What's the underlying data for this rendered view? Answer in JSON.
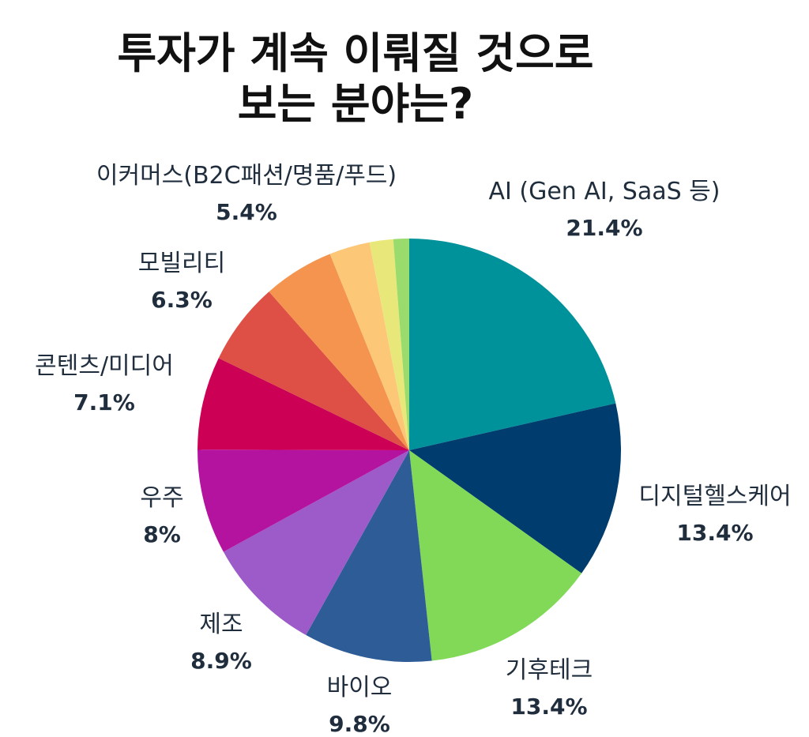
{
  "title": {
    "line1": "투자가 계속 이뤄질 것으로",
    "line2": "보는 분야는?"
  },
  "chart_data": {
    "type": "pie",
    "start": "12 o'clock, clockwise",
    "slices": [
      {
        "label": "AI (Gen AI, SaaS 등)",
        "value": 21.4,
        "pct_label": "21.4%",
        "color": "#00929A"
      },
      {
        "label": "디지털헬스케어",
        "value": 13.4,
        "pct_label": "13.4%",
        "color": "#003D6E"
      },
      {
        "label": "기후테크",
        "value": 13.4,
        "pct_label": "13.4%",
        "color": "#82D857"
      },
      {
        "label": "바이오",
        "value": 9.8,
        "pct_label": "9.8%",
        "color": "#2E5C97"
      },
      {
        "label": "제조",
        "value": 8.9,
        "pct_label": "8.9%",
        "color": "#9C5BC9"
      },
      {
        "label": "우주",
        "value": 8,
        "pct_label": "8%",
        "color": "#B4139F"
      },
      {
        "label": "콘텐츠/미디어",
        "value": 7.1,
        "pct_label": "7.1%",
        "color": "#CC0055"
      },
      {
        "label": "모빌리티",
        "value": 6.3,
        "pct_label": "6.3%",
        "color": "#DE5045"
      },
      {
        "label": "이커머스(B2C패션/명품/푸드)",
        "value": 5.4,
        "pct_label": "5.4%",
        "color": "#F5944E"
      },
      {
        "label": "",
        "value": 3.1,
        "pct_label": "",
        "color": "#FCC877"
      },
      {
        "label": "",
        "value": 1.8,
        "pct_label": "",
        "color": "#E8E87A"
      },
      {
        "label": "",
        "value": 1.2,
        "pct_label": "",
        "color": "#9ADB6E"
      }
    ]
  }
}
